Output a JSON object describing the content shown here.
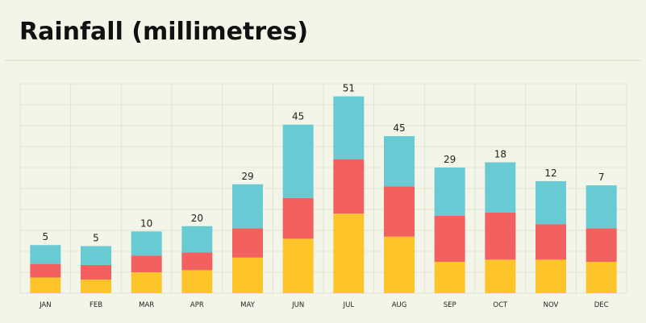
{
  "colors": {
    "background": "#f4f5e9",
    "grid": "#e0e2d2",
    "bottom_segment": "#fdc52a",
    "middle_segment": "#f36060",
    "top_segment": "#68cbd4"
  },
  "chart_data": {
    "type": "bar",
    "stacked": true,
    "title": "Rainfall (millimetres)",
    "xlabel": "",
    "ylabel": "",
    "categories": [
      "JAN",
      "FEB",
      "MAR",
      "APR",
      "MAY",
      "JUN",
      "JUL",
      "AUG",
      "SEP",
      "OCT",
      "NOV",
      "DEC"
    ],
    "data_labels": [
      "5",
      "5",
      "10",
      "20",
      "29",
      "45",
      "51",
      "45",
      "29",
      "18",
      "12",
      "7"
    ],
    "series": [
      {
        "values": [
          7.5,
          6.5,
          10,
          11,
          17,
          26,
          38,
          27,
          15,
          16,
          16,
          15
        ]
      },
      {
        "values": [
          6.5,
          7,
          8,
          8.5,
          14,
          19.5,
          26,
          24,
          22,
          22.5,
          17,
          16
        ]
      },
      {
        "values": [
          9,
          9,
          11.5,
          12.5,
          21,
          35,
          30,
          24,
          23,
          24,
          20.5,
          20.5
        ]
      }
    ],
    "ylim": [
      0,
      100
    ],
    "grid": true,
    "legend": "none"
  }
}
